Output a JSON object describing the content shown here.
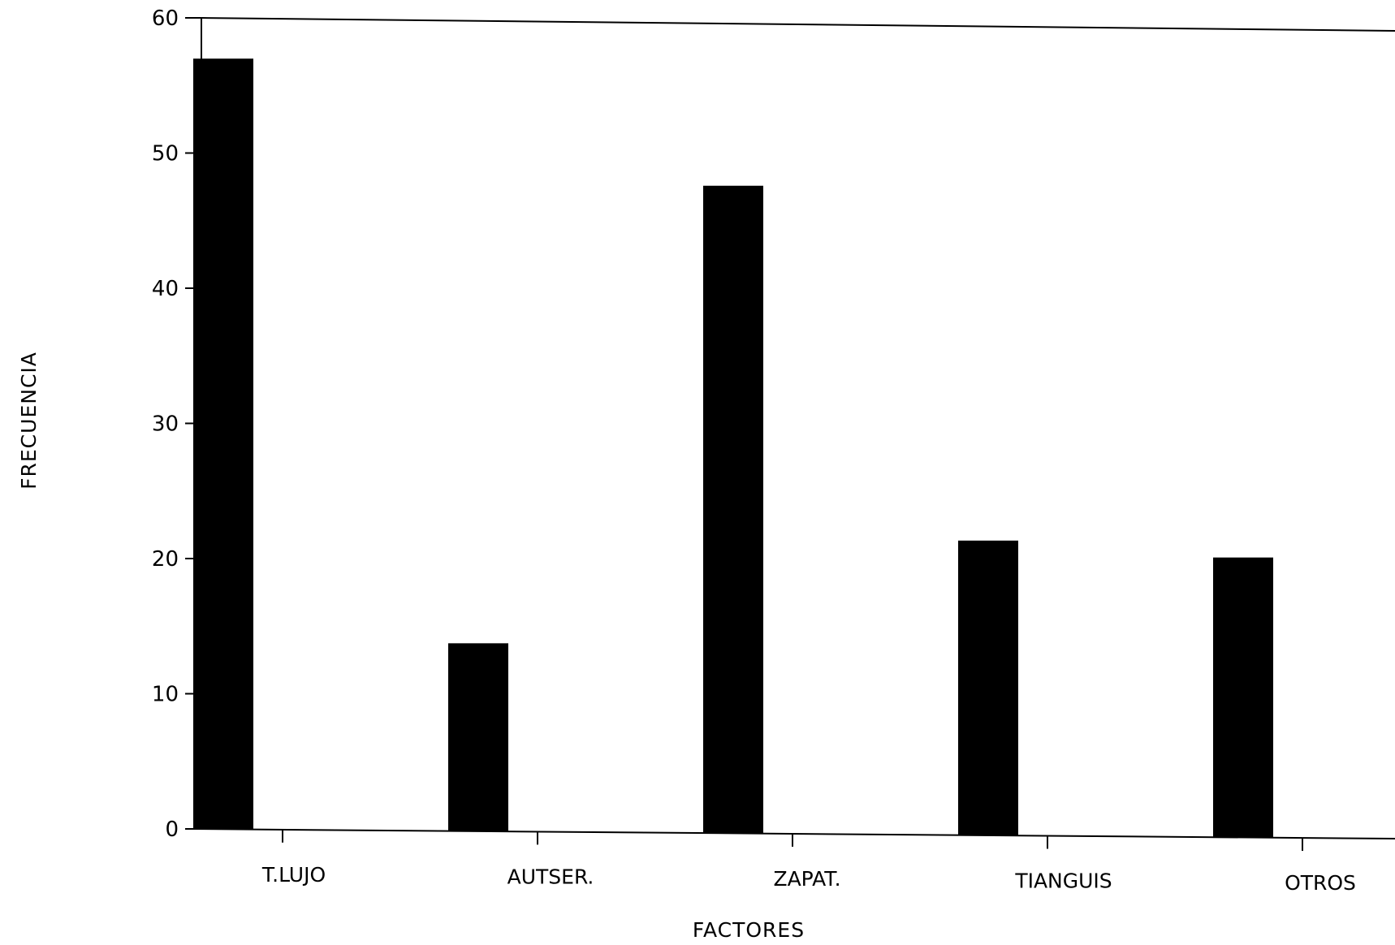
{
  "chart_data": {
    "type": "bar",
    "categories": [
      "T.LUJO",
      "AUTSER.",
      "ZAPAT.",
      "TIANGUIS",
      "OTROS"
    ],
    "values": [
      57,
      13.8,
      47.7,
      21.5,
      20.3
    ],
    "xlabel": "FACTORES",
    "ylabel": "FRECUENCIA",
    "ylim": [
      0,
      60
    ],
    "yticks": [
      0,
      10,
      20,
      30,
      40,
      50,
      60
    ],
    "grid": false,
    "legend": "none",
    "bar_color": "#000000",
    "axis_color": "#000000"
  }
}
